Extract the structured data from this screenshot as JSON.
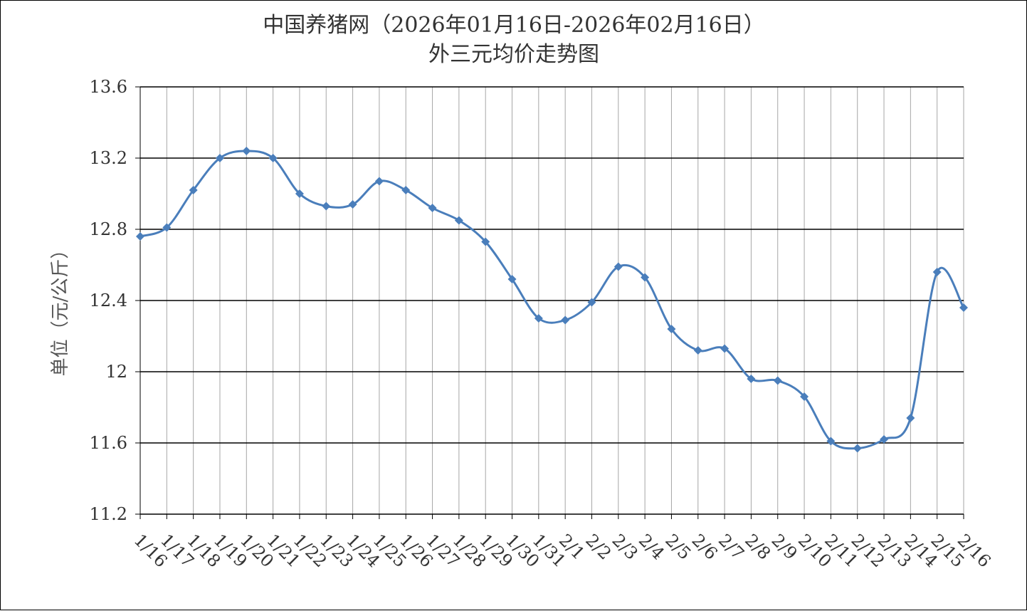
{
  "chart_data": {
    "type": "line",
    "title": "中国养猪网（2026年01月16日-2026年02月16日）",
    "subtitle": "外三元均价走势图",
    "xlabel": "",
    "ylabel": "单位（元/公斤）",
    "ylim": [
      11.2,
      13.6
    ],
    "yticks": [
      "11.2",
      "11.6",
      "12",
      "12.4",
      "12.8",
      "13.2",
      "13.6"
    ],
    "grid": "horizontal major + vertical category lines",
    "legend": "none",
    "line_color": "#4A7EBB",
    "categories": [
      "1/16",
      "1/17",
      "1/18",
      "1/19",
      "1/20",
      "1/21",
      "1/22",
      "1/23",
      "1/24",
      "1/25",
      "1/26",
      "1/27",
      "1/28",
      "1/29",
      "1/30",
      "1/31",
      "2/1",
      "2/2",
      "2/3",
      "2/4",
      "2/5",
      "2/6",
      "2/7",
      "2/8",
      "2/9",
      "2/10",
      "2/11",
      "2/12",
      "2/13",
      "2/14",
      "2/15",
      "2/16"
    ],
    "series": [
      {
        "values": [
          12.76,
          12.81,
          13.02,
          13.2,
          13.24,
          13.2,
          13.0,
          12.93,
          12.94,
          13.07,
          13.02,
          12.92,
          12.85,
          12.73,
          12.52,
          12.3,
          12.29,
          12.39,
          12.59,
          12.53,
          12.24,
          12.12,
          12.13,
          11.96,
          11.95,
          11.86,
          11.61,
          11.57,
          11.62,
          11.74,
          12.56,
          12.36
        ]
      }
    ]
  }
}
